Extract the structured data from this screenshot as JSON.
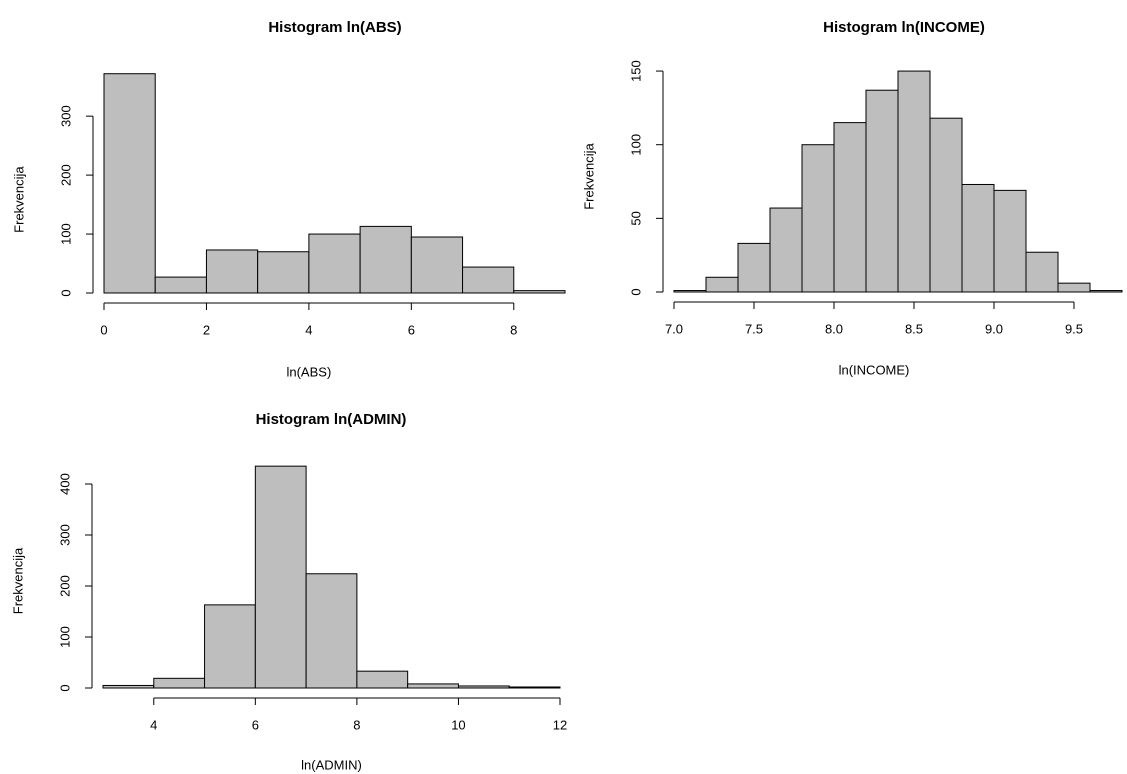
{
  "chart_data": [
    {
      "type": "histogram",
      "title": "Histogram ln(ABS)",
      "xlabel": "ln(ABS)",
      "ylabel": "Frekvencija",
      "color": "#bebebe",
      "bins": [
        0,
        1,
        2,
        3,
        4,
        5,
        6,
        7,
        8,
        9
      ],
      "values": [
        372,
        27,
        73,
        70,
        100,
        113,
        95,
        44,
        4
      ],
      "xlim": [
        0,
        9
      ],
      "xticks": [
        0,
        2,
        4,
        6,
        8
      ],
      "ylim": [
        0,
        380
      ],
      "yticks": [
        0,
        100,
        200,
        300
      ]
    },
    {
      "type": "histogram",
      "title": "Histogram ln(INCOME)",
      "xlabel": "ln(INCOME)",
      "ylabel": "Frekvencija",
      "color": "#bebebe",
      "bins": [
        7.0,
        7.2,
        7.4,
        7.6,
        7.8,
        8.0,
        8.2,
        8.4,
        8.6,
        8.8,
        9.0,
        9.2,
        9.4,
        9.6,
        9.8
      ],
      "values": [
        1,
        10,
        33,
        57,
        100,
        115,
        137,
        150,
        118,
        73,
        69,
        27,
        6,
        1
      ],
      "xlim": [
        7.0,
        9.8
      ],
      "xticks": [
        {
          "value": 7,
          "label": "7.0"
        },
        7.5,
        {
          "value": 8,
          "label": "8.0"
        },
        8.5,
        {
          "value": 9,
          "label": "9.0"
        },
        9.5
      ],
      "ylim": [
        0,
        155
      ],
      "yticks": [
        0,
        50,
        100,
        150
      ]
    },
    {
      "type": "histogram",
      "title": "Histogram ln(ADMIN)",
      "xlabel": "ln(ADMIN)",
      "ylabel": "Frekvencija",
      "color": "#bebebe",
      "bins": [
        3,
        4,
        5,
        6,
        7,
        8,
        9,
        10,
        11,
        12
      ],
      "values": [
        5,
        19,
        163,
        435,
        224,
        33,
        8,
        4,
        2
      ],
      "xlim": [
        3,
        12
      ],
      "xticks": [
        4,
        6,
        8,
        10,
        12
      ],
      "ylim": [
        0,
        450
      ],
      "yticks": [
        0,
        100,
        200,
        300,
        400
      ]
    }
  ]
}
